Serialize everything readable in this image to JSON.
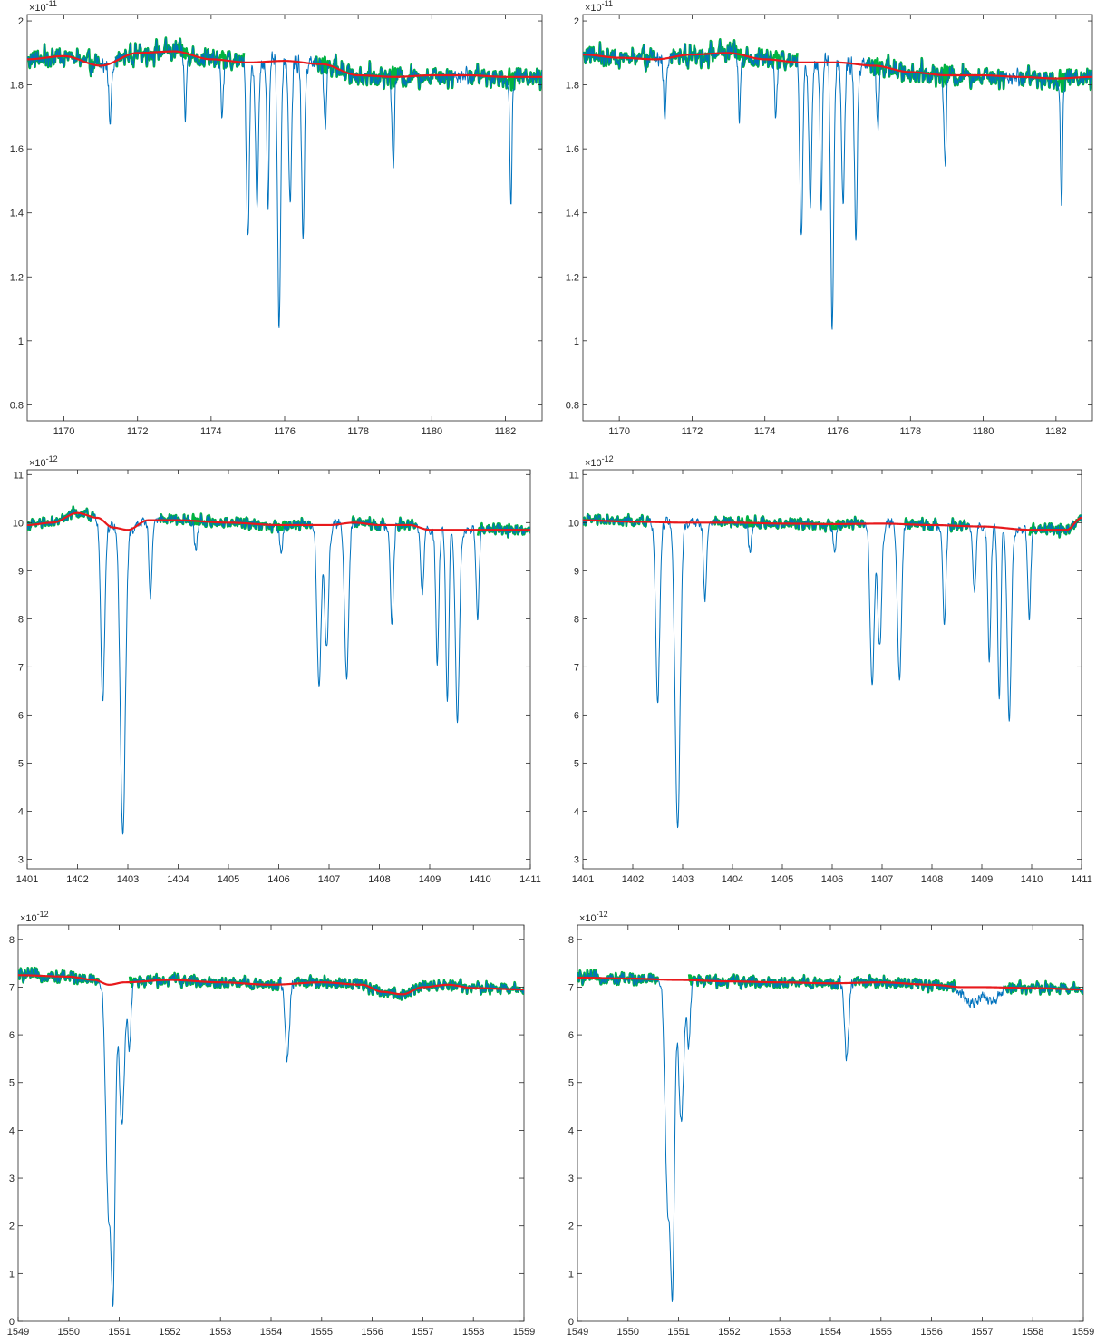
{
  "chart_data": [
    {
      "type": "line",
      "panel": "top-left",
      "xlim": [
        1169,
        1183
      ],
      "ylim": [
        0.75,
        2.02
      ],
      "xticks": [
        1170,
        1172,
        1174,
        1176,
        1178,
        1180,
        1182
      ],
      "xtick_labels": [
        "1170",
        "1172",
        "1174",
        "1176",
        "1178",
        "1180",
        "1182"
      ],
      "yticks": [
        0.8,
        1,
        1.2,
        1.4,
        1.6,
        1.8,
        2
      ],
      "ytick_labels": [
        "0.8",
        "1",
        "1.2",
        "1.4",
        "1.6",
        "1.8",
        "2"
      ],
      "exponent_base": "×10",
      "exponent_power": "-11",
      "colors": {
        "spectrum": "#0072bd",
        "noise_band": "#00b341",
        "continuum": "#e8191c"
      },
      "noise_amplitude": 0.045,
      "band_gaps": [
        [
          1171.0,
          1171.4
        ],
        [
          1174.9,
          1176.8
        ],
        [
          1180.6,
          1181.0
        ]
      ],
      "continuum": [
        [
          1169,
          1.88
        ],
        [
          1170,
          1.89
        ],
        [
          1171,
          1.86
        ],
        [
          1172,
          1.9
        ],
        [
          1173,
          1.905
        ],
        [
          1174,
          1.88
        ],
        [
          1175,
          1.87
        ],
        [
          1176,
          1.875
        ],
        [
          1177,
          1.865
        ],
        [
          1178,
          1.83
        ],
        [
          1179,
          1.825
        ],
        [
          1180,
          1.83
        ],
        [
          1181,
          1.83
        ],
        [
          1182,
          1.825
        ],
        [
          1183,
          1.825
        ]
      ],
      "absorption_lines": [
        [
          1171.25,
          0.2,
          0.03
        ],
        [
          1173.3,
          0.2,
          0.03
        ],
        [
          1174.3,
          0.2,
          0.03
        ],
        [
          1175.0,
          0.54,
          0.04
        ],
        [
          1175.25,
          0.45,
          0.04
        ],
        [
          1175.55,
          0.48,
          0.03
        ],
        [
          1175.85,
          0.85,
          0.04
        ],
        [
          1176.15,
          0.44,
          0.04
        ],
        [
          1176.5,
          0.53,
          0.04
        ],
        [
          1177.1,
          0.2,
          0.03
        ],
        [
          1178.95,
          0.29,
          0.03
        ],
        [
          1182.15,
          0.38,
          0.03
        ]
      ]
    },
    {
      "type": "line",
      "panel": "top-right",
      "xlim": [
        1169,
        1183
      ],
      "ylim": [
        0.75,
        2.02
      ],
      "xticks": [
        1170,
        1172,
        1174,
        1176,
        1178,
        1180,
        1182
      ],
      "xtick_labels": [
        "1170",
        "1172",
        "1174",
        "1176",
        "1178",
        "1180",
        "1182"
      ],
      "yticks": [
        0.8,
        1,
        1.2,
        1.4,
        1.6,
        1.8,
        2
      ],
      "ytick_labels": [
        "0.8",
        "1",
        "1.2",
        "1.4",
        "1.6",
        "1.8",
        "2"
      ],
      "exponent_base": "×10",
      "exponent_power": "-11",
      "colors": {
        "spectrum": "#0072bd",
        "noise_band": "#00b341",
        "continuum": "#e8191c"
      },
      "noise_amplitude": 0.045,
      "band_gaps": [
        [
          1171.0,
          1171.4
        ],
        [
          1174.9,
          1176.8
        ],
        [
          1180.6,
          1181.0
        ]
      ],
      "continuum": [
        [
          1169,
          1.895
        ],
        [
          1170,
          1.885
        ],
        [
          1171,
          1.88
        ],
        [
          1172,
          1.895
        ],
        [
          1173,
          1.9
        ],
        [
          1174,
          1.88
        ],
        [
          1175,
          1.87
        ],
        [
          1176,
          1.87
        ],
        [
          1177,
          1.86
        ],
        [
          1178,
          1.84
        ],
        [
          1179,
          1.83
        ],
        [
          1180,
          1.83
        ],
        [
          1181,
          1.825
        ],
        [
          1182,
          1.82
        ],
        [
          1183,
          1.825
        ]
      ],
      "absorption_lines": [
        [
          1171.25,
          0.2,
          0.03
        ],
        [
          1173.3,
          0.2,
          0.03
        ],
        [
          1174.3,
          0.2,
          0.03
        ],
        [
          1175.0,
          0.54,
          0.04
        ],
        [
          1175.25,
          0.45,
          0.04
        ],
        [
          1175.55,
          0.48,
          0.03
        ],
        [
          1175.85,
          0.85,
          0.04
        ],
        [
          1176.15,
          0.44,
          0.04
        ],
        [
          1176.5,
          0.53,
          0.04
        ],
        [
          1177.1,
          0.2,
          0.03
        ],
        [
          1178.95,
          0.29,
          0.03
        ],
        [
          1182.15,
          0.38,
          0.03
        ]
      ]
    },
    {
      "type": "line",
      "panel": "middle-left",
      "xlim": [
        1401,
        1411
      ],
      "ylim": [
        2.8,
        11.1
      ],
      "xticks": [
        1401,
        1402,
        1403,
        1404,
        1405,
        1406,
        1407,
        1408,
        1409,
        1410,
        1411
      ],
      "xtick_labels": [
        "1401",
        "1402",
        "1403",
        "1404",
        "1405",
        "1406",
        "1407",
        "1408",
        "1409",
        "1410",
        "1411"
      ],
      "yticks": [
        3,
        4,
        5,
        6,
        7,
        8,
        9,
        10,
        11
      ],
      "ytick_labels": [
        "3",
        "4",
        "5",
        "6",
        "7",
        "8",
        "9",
        "10",
        "11"
      ],
      "exponent_base": "×10",
      "exponent_power": "-12",
      "colors": {
        "spectrum": "#0072bd",
        "noise_band": "#00b341",
        "continuum": "#e8191c"
      },
      "noise_amplitude": 0.16,
      "band_gaps": [
        [
          1402.35,
          1403.6
        ],
        [
          1406.65,
          1407.45
        ],
        [
          1408.1,
          1408.35
        ],
        [
          1408.75,
          1409.95
        ]
      ],
      "continuum": [
        [
          1401,
          9.95
        ],
        [
          1401.5,
          10.0
        ],
        [
          1402.0,
          10.2
        ],
        [
          1402.4,
          10.1
        ],
        [
          1402.7,
          9.9
        ],
        [
          1403.0,
          9.85
        ],
        [
          1403.4,
          10.05
        ],
        [
          1404,
          10.05
        ],
        [
          1405,
          10.0
        ],
        [
          1406,
          9.95
        ],
        [
          1407,
          9.95
        ],
        [
          1407.5,
          10.0
        ],
        [
          1408,
          9.95
        ],
        [
          1408.6,
          9.95
        ],
        [
          1409.0,
          9.85
        ],
        [
          1409.5,
          9.85
        ],
        [
          1410,
          9.85
        ],
        [
          1411,
          9.85
        ]
      ],
      "absorption_lines": [
        [
          1402.5,
          3.7,
          0.04
        ],
        [
          1402.9,
          6.4,
          0.05
        ],
        [
          1403.45,
          1.6,
          0.03
        ],
        [
          1404.35,
          0.6,
          0.03
        ],
        [
          1406.05,
          0.5,
          0.03
        ],
        [
          1406.8,
          3.4,
          0.04
        ],
        [
          1406.95,
          2.6,
          0.04
        ],
        [
          1407.35,
          3.2,
          0.04
        ],
        [
          1408.25,
          2.1,
          0.03
        ],
        [
          1408.85,
          1.4,
          0.03
        ],
        [
          1409.15,
          2.8,
          0.03
        ],
        [
          1409.35,
          3.6,
          0.03
        ],
        [
          1409.55,
          3.9,
          0.04
        ],
        [
          1409.95,
          1.8,
          0.03
        ]
      ]
    },
    {
      "type": "line",
      "panel": "middle-right",
      "xlim": [
        1401,
        1411
      ],
      "ylim": [
        2.8,
        11.1
      ],
      "xticks": [
        1401,
        1402,
        1403,
        1404,
        1405,
        1406,
        1407,
        1408,
        1409,
        1410,
        1411
      ],
      "xtick_labels": [
        "1401",
        "1402",
        "1403",
        "1404",
        "1405",
        "1406",
        "1407",
        "1408",
        "1409",
        "1410",
        "1411"
      ],
      "yticks": [
        3,
        4,
        5,
        6,
        7,
        8,
        9,
        10,
        11
      ],
      "ytick_labels": [
        "3",
        "4",
        "5",
        "6",
        "7",
        "8",
        "9",
        "10",
        "11"
      ],
      "exponent_base": "×10",
      "exponent_power": "-12",
      "colors": {
        "spectrum": "#0072bd",
        "noise_band": "#00b341",
        "continuum": "#e8191c"
      },
      "noise_amplitude": 0.16,
      "band_gaps": [
        [
          1402.35,
          1403.6
        ],
        [
          1406.65,
          1407.45
        ],
        [
          1408.1,
          1408.35
        ],
        [
          1408.75,
          1409.95
        ]
      ],
      "continuum": [
        [
          1401,
          10.05
        ],
        [
          1402,
          10.02
        ],
        [
          1403,
          10.0
        ],
        [
          1404,
          10.0
        ],
        [
          1405,
          9.98
        ],
        [
          1406,
          9.97
        ],
        [
          1407,
          9.98
        ],
        [
          1408,
          9.95
        ],
        [
          1409,
          9.92
        ],
        [
          1410,
          9.85
        ],
        [
          1410.7,
          9.85
        ],
        [
          1411,
          10.1
        ]
      ],
      "absorption_lines": [
        [
          1402.5,
          3.7,
          0.04
        ],
        [
          1402.9,
          6.4,
          0.05
        ],
        [
          1403.45,
          1.6,
          0.03
        ],
        [
          1404.35,
          0.6,
          0.03
        ],
        [
          1406.05,
          0.5,
          0.03
        ],
        [
          1406.8,
          3.4,
          0.04
        ],
        [
          1406.95,
          2.6,
          0.04
        ],
        [
          1407.35,
          3.2,
          0.04
        ],
        [
          1408.25,
          2.1,
          0.03
        ],
        [
          1408.85,
          1.4,
          0.03
        ],
        [
          1409.15,
          2.8,
          0.03
        ],
        [
          1409.35,
          3.6,
          0.03
        ],
        [
          1409.55,
          3.9,
          0.04
        ],
        [
          1409.95,
          1.8,
          0.03
        ]
      ]
    },
    {
      "type": "line",
      "panel": "bottom-left",
      "xlim": [
        1549,
        1559
      ],
      "ylim": [
        0,
        8.3
      ],
      "xticks": [
        1549,
        1550,
        1551,
        1552,
        1553,
        1554,
        1555,
        1556,
        1557,
        1558,
        1559
      ],
      "xtick_labels": [
        "1549",
        "1550",
        "1551",
        "1552",
        "1553",
        "1554",
        "1555",
        "1556",
        "1557",
        "1558",
        "1559"
      ],
      "yticks": [
        0,
        1,
        2,
        3,
        4,
        5,
        6,
        7,
        8
      ],
      "ytick_labels": [
        "0",
        "1",
        "2",
        "3",
        "4",
        "5",
        "6",
        "7",
        "8"
      ],
      "exponent_base": "×10",
      "exponent_power": "-12",
      "colors": {
        "spectrum": "#0072bd",
        "noise_band": "#00b341",
        "continuum": "#e8191c"
      },
      "noise_amplitude": 0.17,
      "band_gaps": [
        [
          1550.6,
          1551.2
        ],
        [
          1554.2,
          1554.45
        ]
      ],
      "continuum": [
        [
          1549,
          7.25
        ],
        [
          1550,
          7.22
        ],
        [
          1550.5,
          7.15
        ],
        [
          1550.8,
          7.05
        ],
        [
          1551.1,
          7.1
        ],
        [
          1552,
          7.15
        ],
        [
          1553,
          7.1
        ],
        [
          1554,
          7.05
        ],
        [
          1555,
          7.1
        ],
        [
          1555.8,
          7.05
        ],
        [
          1556.2,
          6.9
        ],
        [
          1556.6,
          6.85
        ],
        [
          1557,
          7.0
        ],
        [
          1557.5,
          7.05
        ],
        [
          1558,
          6.98
        ],
        [
          1559,
          6.95
        ]
      ],
      "absorption_lines": [
        [
          1550.78,
          4.5,
          0.05
        ],
        [
          1550.88,
          6.0,
          0.04
        ],
        [
          1551.05,
          3.0,
          0.05
        ],
        [
          1551.2,
          1.4,
          0.03
        ],
        [
          1554.32,
          1.6,
          0.04
        ]
      ]
    },
    {
      "type": "line",
      "panel": "bottom-right",
      "xlim": [
        1549,
        1559
      ],
      "ylim": [
        0,
        8.3
      ],
      "xticks": [
        1549,
        1550,
        1551,
        1552,
        1553,
        1554,
        1555,
        1556,
        1557,
        1558,
        1559
      ],
      "xtick_labels": [
        "1549",
        "1550",
        "1551",
        "1552",
        "1553",
        "1554",
        "1555",
        "1556",
        "1557",
        "1558",
        "1559"
      ],
      "yticks": [
        0,
        1,
        2,
        3,
        4,
        5,
        6,
        7,
        8
      ],
      "ytick_labels": [
        "0",
        "1",
        "2",
        "3",
        "4",
        "5",
        "6",
        "7",
        "8"
      ],
      "exponent_base": "×10",
      "exponent_power": "-12",
      "colors": {
        "spectrum": "#0072bd",
        "noise_band": "#00b341",
        "continuum": "#e8191c"
      },
      "noise_amplitude": 0.17,
      "band_gaps": [
        [
          1550.6,
          1551.2
        ],
        [
          1554.2,
          1554.45
        ],
        [
          1556.5,
          1557.45
        ]
      ],
      "continuum": [
        [
          1549,
          7.2
        ],
        [
          1550,
          7.18
        ],
        [
          1551,
          7.15
        ],
        [
          1552,
          7.12
        ],
        [
          1553,
          7.1
        ],
        [
          1554,
          7.08
        ],
        [
          1555,
          7.1
        ],
        [
          1556,
          7.05
        ],
        [
          1556.6,
          7.0
        ],
        [
          1557,
          7.0
        ],
        [
          1558,
          6.98
        ],
        [
          1559,
          6.95
        ]
      ],
      "absorption_lines": [
        [
          1550.78,
          4.5,
          0.05
        ],
        [
          1550.88,
          6.0,
          0.04
        ],
        [
          1551.05,
          3.0,
          0.05
        ],
        [
          1551.2,
          1.4,
          0.03
        ],
        [
          1554.32,
          1.6,
          0.04
        ],
        [
          1556.8,
          0.35,
          0.15
        ],
        [
          1557.2,
          0.3,
          0.12
        ]
      ]
    }
  ]
}
